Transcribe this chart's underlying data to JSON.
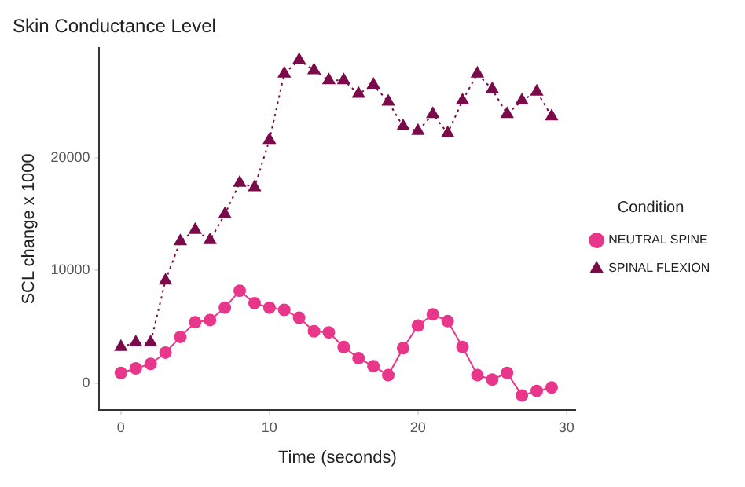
{
  "chart_data": {
    "type": "line",
    "title": "Skin Conductance Level",
    "xlabel": "Time (seconds)",
    "ylabel": "SCL change x 1000",
    "legend_title": "Condition",
    "legend": "right",
    "grid": false,
    "x": [
      0,
      1,
      2,
      3,
      4,
      5,
      6,
      7,
      8,
      9,
      10,
      11,
      12,
      13,
      14,
      15,
      16,
      17,
      18,
      19,
      20,
      21,
      22,
      23,
      24,
      25,
      26,
      27,
      28,
      29
    ],
    "xlim": [
      -1.45,
      30.6
    ],
    "xticks": [
      0,
      10,
      20,
      30
    ],
    "ylim": [
      -2400,
      29800
    ],
    "yticks": [
      0,
      10000,
      20000
    ],
    "series": [
      {
        "name": "NEUTRAL SPINE",
        "color": "#e8368a",
        "marker": "circle",
        "line_style": "solid",
        "values": [
          900,
          1300,
          1700,
          2700,
          4100,
          5400,
          5600,
          6700,
          8200,
          7100,
          6700,
          6500,
          5800,
          4600,
          4500,
          3200,
          2200,
          1500,
          700,
          3100,
          5100,
          6100,
          5500,
          3200,
          700,
          300,
          900,
          -1100,
          -700,
          -400
        ]
      },
      {
        "name": "SPINAL FLEXION",
        "color": "#7a0a4a",
        "marker": "triangle",
        "line_style": "dotted",
        "values": [
          3200,
          3600,
          3600,
          9100,
          12600,
          13600,
          12700,
          15000,
          17800,
          17400,
          21600,
          27500,
          28700,
          27800,
          26900,
          26900,
          25700,
          26500,
          25000,
          22800,
          22400,
          23900,
          22200,
          25100,
          27500,
          26100,
          23900,
          25100,
          25900,
          23700
        ]
      }
    ]
  }
}
